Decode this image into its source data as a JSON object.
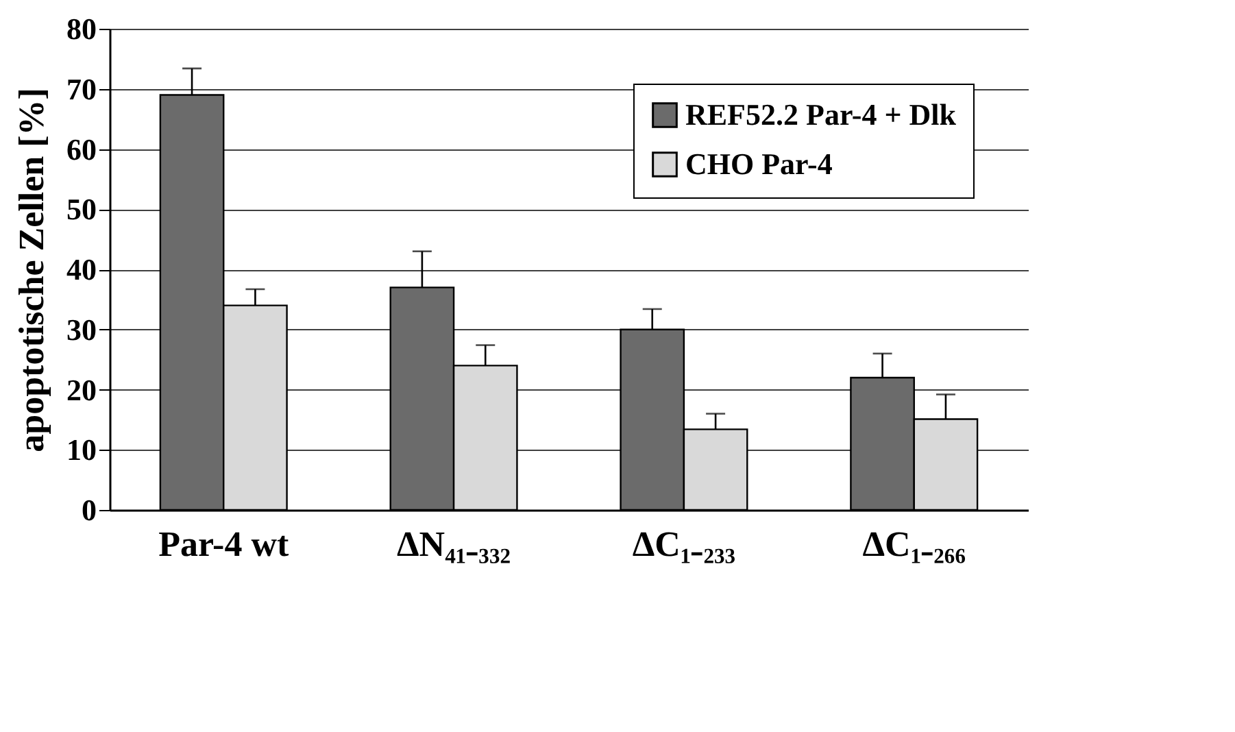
{
  "chart_data": {
    "type": "bar",
    "ylabel": "apoptotische Zellen [%]",
    "categories": [
      "Par-4 wt",
      "ΔN₄₁₋₃₃₂",
      "ΔC₁₋₂₃₃",
      "ΔC₁₋₂₆₆"
    ],
    "series": [
      {
        "name": "REF52.2 Par-4 + Dlk",
        "color": "#6b6b6b",
        "values": [
          69,
          37,
          30,
          22
        ],
        "errors": [
          [
            69,
            73.4
          ],
          [
            37,
            43
          ],
          [
            30,
            33.4
          ],
          [
            22,
            26
          ]
        ]
      },
      {
        "name": "CHO Par-4",
        "color": "#d9d9d9",
        "values": [
          34,
          24,
          13.4,
          15.1
        ],
        "errors": [
          [
            34,
            36.7
          ],
          [
            24,
            27.4
          ],
          [
            13.4,
            16
          ],
          [
            15.1,
            19.2
          ]
        ]
      }
    ],
    "ylim": [
      0,
      80
    ],
    "yticks": [
      0,
      10,
      20,
      30,
      40,
      50,
      60,
      70,
      80
    ],
    "grid": "y",
    "legend": "top right"
  }
}
